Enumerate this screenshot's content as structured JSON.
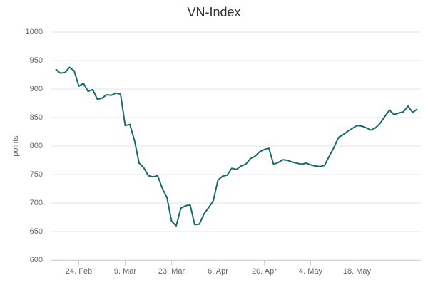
{
  "chart_data": {
    "type": "line",
    "title": "VN-Index",
    "y_label": "points",
    "categories": [
      null,
      null,
      null,
      null,
      null,
      "24. Feb",
      null,
      null,
      null,
      null,
      null,
      null,
      null,
      null,
      null,
      "9. Mar",
      null,
      null,
      null,
      null,
      null,
      null,
      null,
      null,
      null,
      "23. Mar",
      null,
      null,
      null,
      null,
      null,
      null,
      null,
      null,
      null,
      "6. Apr",
      null,
      null,
      null,
      null,
      null,
      null,
      null,
      null,
      null,
      "20. Apr",
      null,
      null,
      null,
      null,
      null,
      null,
      null,
      null,
      null,
      "4. May",
      null,
      null,
      null,
      null,
      null,
      null,
      null,
      null,
      null,
      "18. May",
      null,
      null,
      null,
      null,
      null,
      null,
      null,
      null,
      null,
      null,
      null,
      null,
      null
    ],
    "series": [
      {
        "name": "VN-Index",
        "color": "#186a6e",
        "values": [
          935,
          928,
          929,
          938,
          932,
          905,
          910,
          896,
          899,
          882,
          884,
          890,
          889,
          893,
          891,
          836,
          838,
          810,
          770,
          762,
          748,
          746,
          748,
          726,
          710,
          668,
          660,
          691,
          695,
          697,
          662,
          663,
          681,
          692,
          704,
          740,
          747,
          749,
          761,
          759,
          765,
          768,
          778,
          782,
          790,
          794,
          796,
          768,
          771,
          776,
          775,
          772,
          770,
          768,
          770,
          767,
          765,
          764,
          766,
          782,
          797,
          815,
          820,
          826,
          831,
          836,
          835,
          832,
          828,
          832,
          840,
          852,
          863,
          855,
          858,
          860,
          870,
          859,
          865
        ]
      }
    ],
    "ylim": [
      600,
      1000
    ],
    "yticks": [
      600,
      650,
      700,
      750,
      800,
      850,
      900,
      950,
      1000
    ],
    "grid": true
  }
}
